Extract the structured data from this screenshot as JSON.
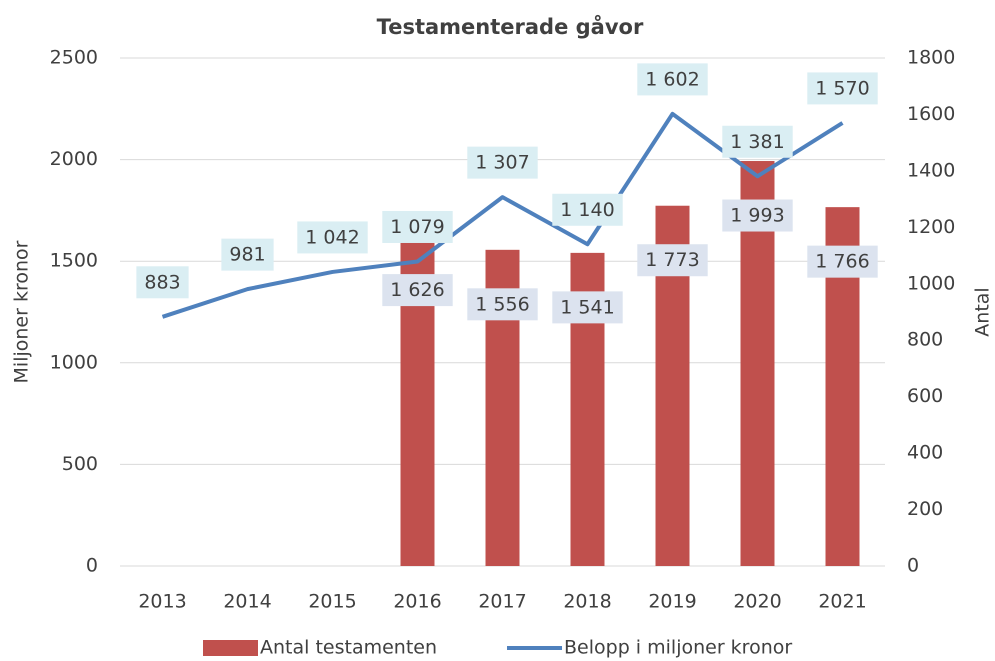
{
  "chart_data": {
    "type": "bar-line",
    "title": "Testamenterade gåvor",
    "categories": [
      "2013",
      "2014",
      "2015",
      "2016",
      "2017",
      "2018",
      "2019",
      "2020",
      "2021"
    ],
    "series": [
      {
        "name": "Antal testamenten",
        "type": "bar",
        "color": "#c0504d",
        "axis": "y",
        "values": [
          null,
          null,
          null,
          1626,
          1556,
          1541,
          1773,
          1993,
          1766
        ],
        "value_labels": [
          null,
          null,
          null,
          "1 626",
          "1 556",
          "1 541",
          "1 773",
          "1 993",
          "1 766"
        ]
      },
      {
        "name": "Belopp i miljoner kronor",
        "type": "line",
        "color": "#4f81bd",
        "axis": "y2",
        "values": [
          883,
          981,
          1042,
          1079,
          1307,
          1140,
          1602,
          1381,
          1570
        ],
        "value_labels": [
          "883",
          "981",
          "1 042",
          "1 079",
          "1 307",
          "1 140",
          "1 602",
          "1 381",
          "1 570"
        ]
      }
    ],
    "ylabel": "Miljoner kronor",
    "y2label": "Antal",
    "ylim": [
      0,
      2500
    ],
    "yticks": [
      0,
      500,
      1000,
      1500,
      2000,
      2500
    ],
    "y2lim": [
      0,
      1800
    ],
    "y2ticks": [
      0,
      200,
      400,
      600,
      800,
      1000,
      1200,
      1400,
      1600,
      1800
    ],
    "grid": true,
    "legend": "bottom"
  }
}
